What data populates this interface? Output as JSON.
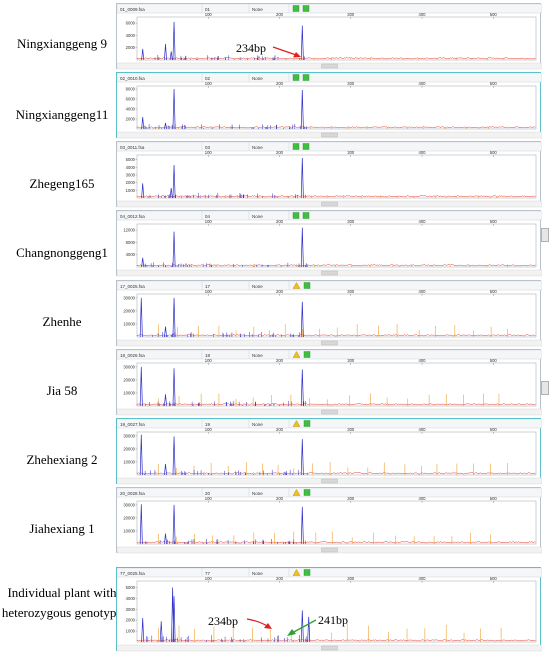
{
  "rows": [
    {
      "label": "Ningxianggeng 9",
      "file": "01_0009.fsa",
      "sample": "01",
      "method": "None",
      "x_ticks": [
        100,
        200,
        300,
        400,
        500
      ],
      "y_ticks": [
        2000,
        4000,
        6000
      ],
      "ymax": 7000,
      "warn": false,
      "peak_label": "234bp",
      "peaks": [
        [
          52,
          6200
        ],
        [
          232,
          5600
        ],
        [
          8,
          1800
        ],
        [
          40,
          2600
        ],
        [
          48,
          1400
        ]
      ]
    },
    {
      "label": "Ningxianggeng11",
      "file": "02_0010.fsa",
      "sample": "02",
      "method": "None",
      "x_ticks": [
        100,
        200,
        300,
        400,
        500
      ],
      "y_ticks": [
        2000,
        4000,
        6000,
        8000
      ],
      "ymax": 8600,
      "warn": false,
      "peaks": [
        [
          52,
          8000
        ],
        [
          232,
          7800
        ],
        [
          8,
          2400
        ],
        [
          40,
          1200
        ]
      ]
    },
    {
      "label": "Zhegeng165",
      "file": "03_0011.fsa",
      "sample": "03",
      "method": "None",
      "x_ticks": [
        100,
        200,
        300,
        400,
        500
      ],
      "y_ticks": [
        1000,
        2000,
        3000,
        4000,
        5000
      ],
      "ymax": 5600,
      "warn": false,
      "peaks": [
        [
          52,
          4300
        ],
        [
          232,
          5200
        ],
        [
          8,
          1900
        ],
        [
          48,
          1300
        ]
      ]
    },
    {
      "label": "Changnonggeng1",
      "file": "04_0012.fsa",
      "sample": "04",
      "method": "None",
      "x_ticks": [
        100,
        200,
        300,
        400,
        500
      ],
      "y_ticks": [
        4000,
        8000,
        12000
      ],
      "ymax": 14000,
      "warn": false,
      "peaks": [
        [
          52,
          11500
        ],
        [
          232,
          12800
        ],
        [
          8,
          3000
        ]
      ]
    },
    {
      "label": "Zhenhe",
      "file": "17_0025.fsa",
      "sample": "17",
      "method": "None",
      "x_ticks": [
        100,
        200,
        300,
        400,
        500
      ],
      "y_ticks": [
        10000,
        20000,
        30000
      ],
      "ymax": 33000,
      "warn": true,
      "peaks": [
        [
          52,
          30000
        ],
        [
          232,
          27000
        ],
        [
          6,
          30000
        ],
        [
          40,
          8000
        ]
      ]
    },
    {
      "label": "Jia 58",
      "file": "18_0026.fsa",
      "sample": "18",
      "method": "None",
      "x_ticks": [
        100,
        200,
        300,
        400,
        500
      ],
      "y_ticks": [
        10000,
        20000,
        30000
      ],
      "ymax": 33000,
      "warn": true,
      "peaks": [
        [
          52,
          29000
        ],
        [
          232,
          28000
        ],
        [
          6,
          30000
        ],
        [
          40,
          9000
        ]
      ]
    },
    {
      "label": "Zhehexiang 2",
      "file": "19_0027.fsa",
      "sample": "19",
      "method": "None",
      "x_ticks": [
        100,
        200,
        300,
        400,
        500
      ],
      "y_ticks": [
        10000,
        20000,
        30000
      ],
      "ymax": 33000,
      "warn": true,
      "peaks": [
        [
          52,
          29500
        ],
        [
          232,
          27500
        ],
        [
          6,
          31000
        ],
        [
          40,
          8500
        ]
      ]
    },
    {
      "label": "Jiahexiang 1",
      "file": "20_0028.fsa",
      "sample": "20",
      "method": "None",
      "x_ticks": [
        100,
        200,
        300,
        400,
        500
      ],
      "y_ticks": [
        10000,
        20000,
        30000
      ],
      "ymax": 33000,
      "warn": true,
      "peaks": [
        [
          52,
          30000
        ],
        [
          232,
          28500
        ],
        [
          6,
          30500
        ],
        [
          40,
          8000
        ]
      ]
    },
    {
      "label": "Individual plant with heterozygous genotype",
      "label_lines": [
        "Individual plant with",
        "heterozygous genotype"
      ],
      "file": "77_0025.fsa",
      "sample": "77",
      "method": "None",
      "x_ticks": [
        100,
        200,
        300,
        400,
        500
      ],
      "y_ticks": [
        1000,
        2000,
        3000,
        4000,
        5000
      ],
      "ymax": 5600,
      "warn": true,
      "peak_labels": [
        "234bp",
        "241bp"
      ],
      "peaks": [
        [
          52,
          4200
        ],
        [
          50,
          5000
        ],
        [
          232,
          2900
        ],
        [
          241,
          2300
        ],
        [
          8,
          2200
        ],
        [
          34,
          1900
        ]
      ]
    }
  ],
  "colors": {
    "trace_blue": "#2f2fc8",
    "trace_red": "#e03020",
    "trace_orange": "#f0a030",
    "arrow_red": "#e02020",
    "arrow_green": "#30a030",
    "status_green": "#3fbf3f",
    "status_warn": "#f0c020",
    "panel_border": "#b9c2cc",
    "panel_selected": "#5bc0c8"
  }
}
